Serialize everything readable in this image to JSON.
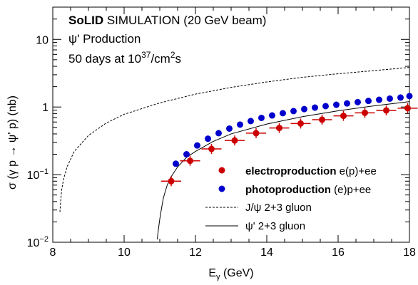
{
  "chart_data": {
    "type": "scatter",
    "annotations": {
      "line1_bold": "SoLID",
      "line1_rest": " SIMULATION (20 GeV beam)",
      "line2": "ψ' Production",
      "line3_a": "50 days at 10",
      "line3_exp1": "37",
      "line3_b": "/cm",
      "line3_exp2": "2",
      "line3_c": "s"
    },
    "xlabel": "E",
    "xlabel_sub": "γ",
    "xlabel_unit": " (GeV)",
    "ylabel": "σ (γ p → ψ' p) (nb)",
    "xlim": [
      8,
      18
    ],
    "ylim": [
      0.01,
      30
    ],
    "y_scale": "log",
    "x_ticks": [
      "8",
      "10",
      "12",
      "14",
      "16",
      "18"
    ],
    "y_ticks": [
      {
        "base": "10",
        "exp": "−2",
        "value": 0.01
      },
      {
        "base": "10",
        "exp": "−1",
        "value": 0.1
      },
      {
        "base": "1",
        "exp": "",
        "value": 1
      },
      {
        "base": "10",
        "exp": "",
        "value": 10
      }
    ],
    "grid": false,
    "legend_position": "bottom-right",
    "series": [
      {
        "name": "electroproduction",
        "name_suffix": " e(p)+ee",
        "kind": "points",
        "color": "#cc0000",
        "x": [
          11.32,
          11.85,
          12.45,
          13.1,
          13.7,
          14.35,
          14.95,
          15.55,
          16.15,
          16.75,
          17.35,
          17.95
        ],
        "y": [
          0.08,
          0.16,
          0.24,
          0.32,
          0.41,
          0.49,
          0.57,
          0.65,
          0.74,
          0.82,
          0.89,
          0.96
        ],
        "xerr": 0.28
      },
      {
        "name": "photoproduction",
        "name_suffix": " (e)p+ee",
        "kind": "points",
        "color": "#0000cc",
        "x": [
          11.45,
          11.75,
          12.05,
          12.35,
          12.65,
          12.95,
          13.25,
          13.55,
          13.85,
          14.15,
          14.45,
          14.75,
          15.05,
          15.35,
          15.65,
          15.95,
          16.25,
          16.55,
          16.85,
          17.15,
          17.45,
          17.75,
          18.0
        ],
        "y": [
          0.145,
          0.2,
          0.27,
          0.34,
          0.41,
          0.48,
          0.55,
          0.62,
          0.69,
          0.75,
          0.81,
          0.87,
          0.93,
          0.98,
          1.03,
          1.08,
          1.13,
          1.18,
          1.23,
          1.28,
          1.33,
          1.38,
          1.45
        ]
      },
      {
        "name": "J/ψ 2+3 gluon",
        "kind": "dashed-line",
        "color": "#000000",
        "x": [
          8.2,
          8.22,
          8.25,
          8.3,
          8.4,
          8.6,
          9.0,
          9.5,
          10.0,
          11.0,
          12.0,
          13.0,
          14.0,
          15.0,
          16.0,
          17.0,
          18.0
        ],
        "y": [
          0.028,
          0.04,
          0.06,
          0.085,
          0.13,
          0.22,
          0.38,
          0.58,
          0.78,
          1.15,
          1.55,
          1.95,
          2.35,
          2.75,
          3.1,
          3.45,
          3.85
        ]
      },
      {
        "name": "ψ' 2+3 gluon",
        "kind": "solid-line",
        "color": "#000000",
        "x": [
          10.93,
          10.95,
          11.0,
          11.05,
          11.1,
          11.2,
          11.3,
          11.5,
          11.75,
          12.0,
          12.5,
          13.0,
          14.0,
          15.0,
          16.0,
          17.0,
          18.0
        ],
        "y": [
          0.011,
          0.014,
          0.022,
          0.032,
          0.045,
          0.068,
          0.09,
          0.13,
          0.18,
          0.22,
          0.31,
          0.4,
          0.56,
          0.72,
          0.88,
          1.04,
          1.2
        ]
      }
    ]
  }
}
